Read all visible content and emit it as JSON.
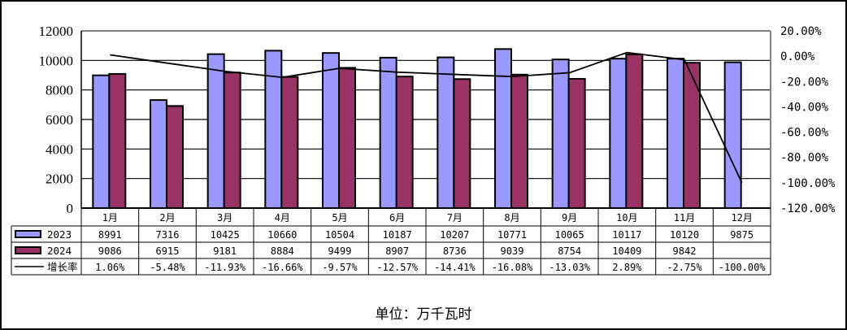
{
  "chart_data": {
    "type": "bar+line",
    "title": "",
    "categories": [
      "1月",
      "2月",
      "3月",
      "4月",
      "5月",
      "6月",
      "7月",
      "8月",
      "9月",
      "10月",
      "11月",
      "12月"
    ],
    "series": [
      {
        "name": "2023",
        "type": "bar",
        "axis": "left",
        "color": "#9999FF",
        "values": [
          8991,
          7316,
          10425,
          10660,
          10504,
          10187,
          10207,
          10771,
          10065,
          10117,
          10120,
          9875
        ]
      },
      {
        "name": "2024",
        "type": "bar",
        "axis": "left",
        "color": "#993366",
        "values": [
          9086,
          6915,
          9181,
          8884,
          9499,
          8907,
          8736,
          9039,
          8754,
          10409,
          9842,
          null
        ]
      },
      {
        "name": "增长率",
        "type": "line",
        "axis": "right",
        "color": "#000000",
        "values": [
          1.06,
          -5.48,
          -11.93,
          -16.66,
          -9.57,
          -12.57,
          -14.41,
          -16.08,
          -13.03,
          2.89,
          -2.75,
          -100.0
        ],
        "labels": [
          "1.06%",
          "-5.48%",
          "-11.93%",
          "-16.66%",
          "-9.57%",
          "-12.57%",
          "-14.41%",
          "-16.08%",
          "-13.03%",
          "2.89%",
          "-2.75%",
          "-100.00%"
        ]
      }
    ],
    "y_left": {
      "min": 0,
      "max": 12000,
      "step": 2000,
      "ticks": [
        "0",
        "2000",
        "4000",
        "6000",
        "8000",
        "10000",
        "12000"
      ]
    },
    "y_right": {
      "min": -120,
      "max": 20,
      "step": 20,
      "ticks": [
        "-120.00%",
        "-100.00%",
        "-80.00%",
        "-60.00%",
        "-40.00%",
        "-20.00%",
        "0.00%",
        "20.00%"
      ]
    },
    "xlabel": "",
    "ylabel": "",
    "unit_label": "单位：万千瓦时",
    "grid": true,
    "legend_position": "data-table-left",
    "data_table": true
  },
  "footer": {
    "unit": "单位：万千瓦时"
  }
}
